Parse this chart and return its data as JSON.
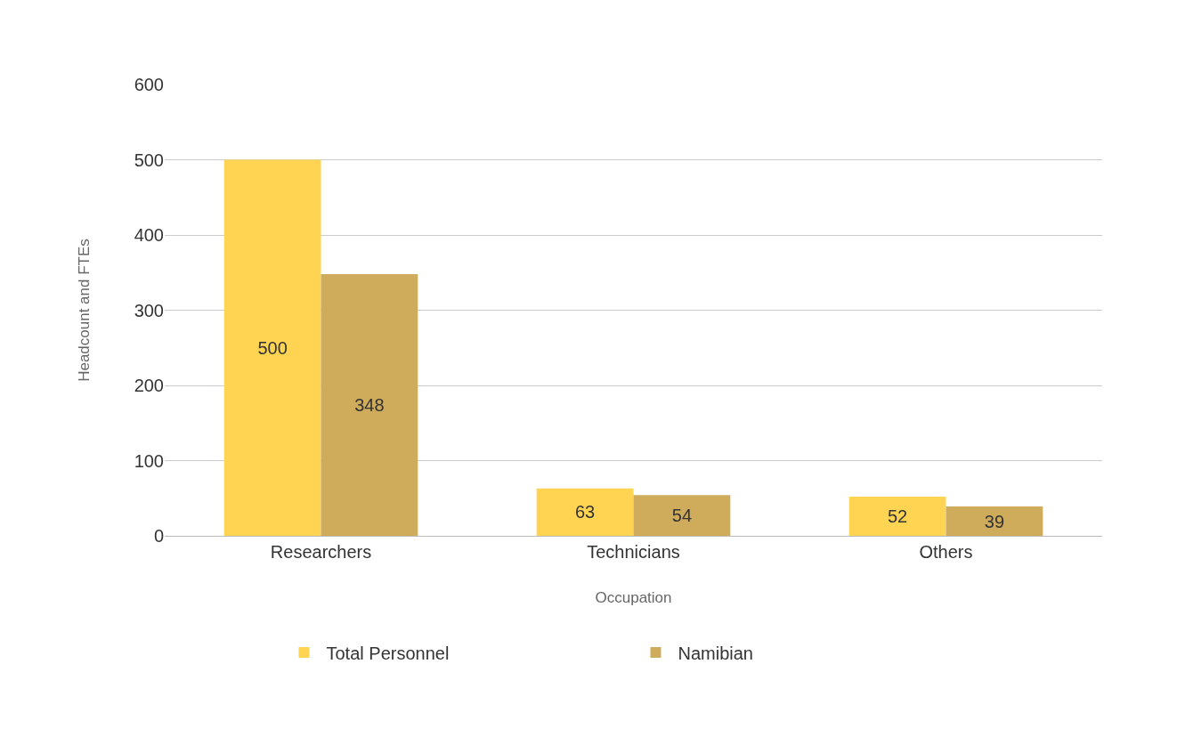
{
  "chart_data": {
    "type": "bar",
    "xlabel": "Occupation",
    "ylabel": "Headcount and FTEs",
    "categories": [
      "Researchers",
      "Technicians",
      "Others"
    ],
    "series": [
      {
        "name": "Total Personnel",
        "color": "#fed452",
        "values": [
          500,
          63,
          52
        ]
      },
      {
        "name": "Namibian",
        "color": "#cfab5c",
        "values": [
          348,
          54,
          39
        ]
      }
    ],
    "ylim": [
      0,
      600
    ],
    "yticks": [
      0,
      100,
      200,
      300,
      400,
      500,
      600
    ],
    "grid": "y",
    "legend": "bottom",
    "data_labels": true
  }
}
